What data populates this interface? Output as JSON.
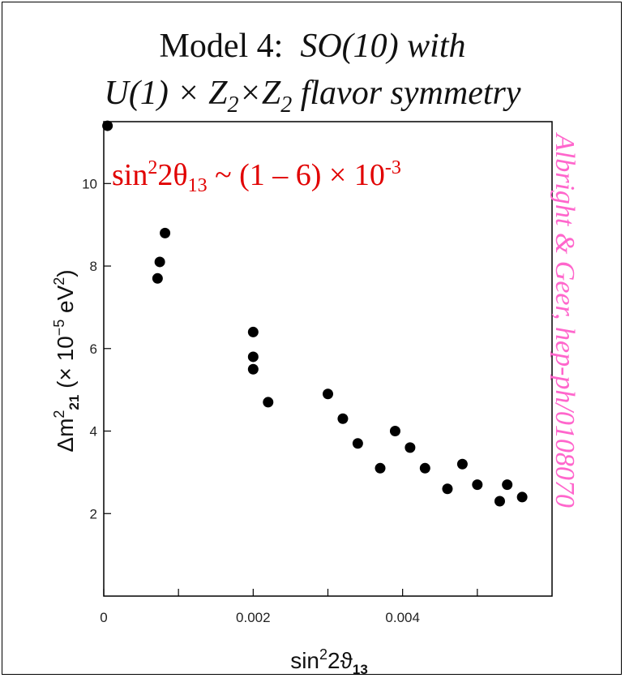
{
  "title": {
    "line1_prefix": "Model 4:",
    "line1_italic": "SO(10)  with",
    "line2_a": "U(1) × Z",
    "line2_sub1": "2",
    "line2_b": "×Z",
    "line2_sub2": "2",
    "line2_c": " flavor symmetry"
  },
  "annotation": {
    "pre": "sin",
    "sup": "2",
    "mid": "2θ",
    "sub": "13",
    "post": " ~ (1 – 6) × 10",
    "exp": "-3"
  },
  "credit": "Albright & Geer, hep-ph/0108070",
  "chart_data": {
    "type": "scatter",
    "xlabel": "sin²2ϑ₁₃",
    "ylabel": "Δm²₂₁  (× 10⁻⁵ eV²)",
    "xlim": [
      0,
      0.006
    ],
    "ylim": [
      0,
      11.5
    ],
    "x_ticks": [
      0,
      0.002,
      0.004
    ],
    "x_tick_labels": [
      "0",
      "0.002",
      "0.004"
    ],
    "y_ticks": [
      2,
      4,
      6,
      8,
      10
    ],
    "y_tick_labels": [
      "2",
      "4",
      "6",
      "8",
      "10"
    ],
    "grid": false,
    "series": [
      {
        "color": "#000000",
        "points": [
          [
            5e-05,
            11.4
          ],
          [
            0.00072,
            7.7
          ],
          [
            0.00075,
            8.1
          ],
          [
            0.00082,
            8.8
          ],
          [
            0.002,
            6.4
          ],
          [
            0.002,
            5.8
          ],
          [
            0.002,
            5.5
          ],
          [
            0.0022,
            4.7
          ],
          [
            0.003,
            4.9
          ],
          [
            0.0032,
            4.3
          ],
          [
            0.0034,
            3.7
          ],
          [
            0.0037,
            3.1
          ],
          [
            0.0039,
            4.0
          ],
          [
            0.0041,
            3.6
          ],
          [
            0.0043,
            3.1
          ],
          [
            0.0046,
            2.6
          ],
          [
            0.0048,
            3.2
          ],
          [
            0.005,
            2.7
          ],
          [
            0.0053,
            2.3
          ],
          [
            0.0054,
            2.7
          ],
          [
            0.0056,
            2.4
          ]
        ]
      }
    ]
  }
}
